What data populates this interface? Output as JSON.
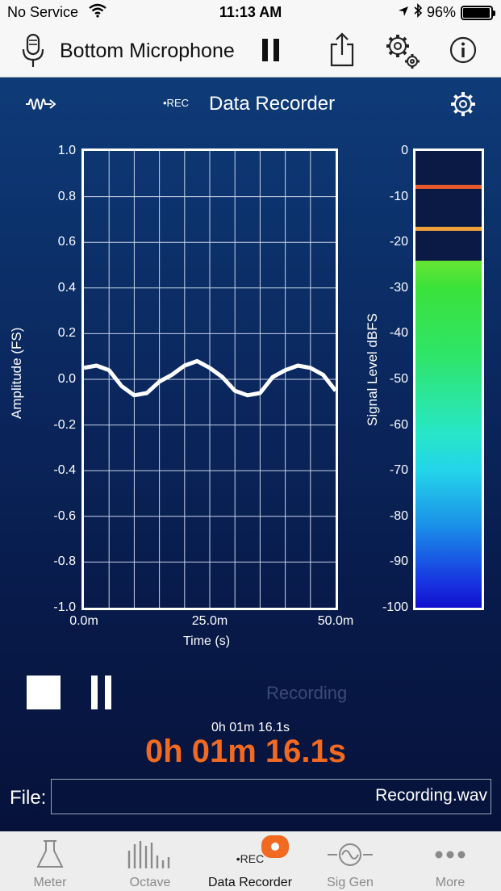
{
  "status": {
    "carrier": "No Service",
    "time": "11:13 AM",
    "battery": "96%",
    "battery_level": 0.96
  },
  "toolbar": {
    "input_label": "Bottom Microphone",
    "icons": [
      "microphone-icon",
      "pause-icon",
      "share-icon",
      "settings-icon",
      "info-icon"
    ]
  },
  "screen": {
    "title": "Data Recorder",
    "rec_mark": "•REC"
  },
  "chart_data": [
    {
      "type": "line",
      "title": "",
      "xlabel": "Time (s)",
      "ylabel": "Amplitude (FS)",
      "xlim": [
        0,
        50
      ],
      "ylim": [
        -1.0,
        1.0
      ],
      "x_ticks": [
        "0.0m",
        "25.0m",
        "50.0m"
      ],
      "y_ticks": [
        "1.0",
        "0.8",
        "0.6",
        "0.4",
        "0.2",
        "0.0",
        "-0.2",
        "-0.4",
        "-0.6",
        "-0.8",
        "-1.0"
      ],
      "grid": true,
      "series": [
        {
          "x": [
            0,
            2.5,
            5,
            7.5,
            10,
            12.5,
            15,
            17.5,
            20,
            22.5,
            25,
            27.5,
            30,
            32.5,
            35,
            37.5,
            40,
            42.5,
            45,
            47.5,
            50
          ],
          "values": [
            0.05,
            0.06,
            0.04,
            -0.03,
            -0.07,
            -0.06,
            -0.01,
            0.02,
            0.06,
            0.08,
            0.05,
            0.01,
            -0.05,
            -0.07,
            -0.06,
            0.01,
            0.04,
            0.06,
            0.05,
            0.02,
            -0.05
          ]
        }
      ]
    },
    {
      "type": "bar",
      "title": "",
      "ylabel": "Signal Level dBFS",
      "ylim": [
        -100,
        0
      ],
      "y_ticks": [
        "0",
        "-10",
        "-20",
        "-30",
        "-40",
        "-50",
        "-60",
        "-70",
        "-80",
        "-90",
        "-100"
      ],
      "values": [
        -24
      ],
      "peak_markers": [
        {
          "value": -7.7,
          "color": "#e8592a"
        },
        {
          "value": -17,
          "color": "#f0a23a"
        }
      ]
    }
  ],
  "controls": {
    "stop_icon": "stop-icon",
    "pause_icon": "pause-icon",
    "status_text": "Recording"
  },
  "timer": {
    "small": "0h 01m 16.1s",
    "big": "0h 01m 16.1s",
    "color": "#f26a21"
  },
  "file": {
    "label": "File:",
    "value": "Recording.wav"
  },
  "tabs": [
    {
      "label": "Meter",
      "icon": "flask-icon",
      "active": false
    },
    {
      "label": "Octave",
      "icon": "octave-bars-icon",
      "active": false
    },
    {
      "label": "Data Recorder",
      "icon": "rec-icon",
      "active": true
    },
    {
      "label": "Sig Gen",
      "icon": "sine-wave-icon",
      "active": false
    },
    {
      "label": "More",
      "icon": "more-icon",
      "active": false
    }
  ]
}
